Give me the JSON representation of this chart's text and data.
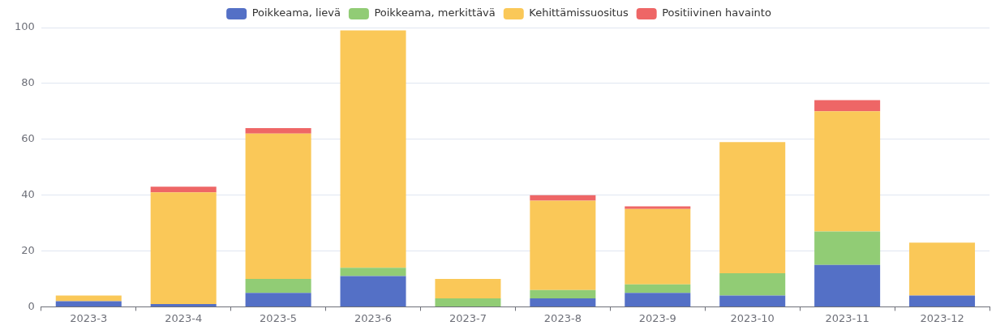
{
  "chart_data": {
    "type": "bar",
    "stacked": true,
    "categories": [
      "2023-3",
      "2023-4",
      "2023-5",
      "2023-6",
      "2023-7",
      "2023-8",
      "2023-9",
      "2023-10",
      "2023-11",
      "2023-12"
    ],
    "series": [
      {
        "name": "Poikkeama, lievä",
        "color": "#5470c6",
        "values": [
          2,
          1,
          5,
          11,
          0,
          3,
          5,
          4,
          15,
          4
        ]
      },
      {
        "name": "Poikkeama, merkittävä",
        "color": "#91cc75",
        "values": [
          0,
          0,
          5,
          3,
          3,
          3,
          3,
          8,
          12,
          0
        ]
      },
      {
        "name": "Kehittämissuositus",
        "color": "#fac858",
        "values": [
          2,
          40,
          52,
          85,
          7,
          32,
          27,
          47,
          43,
          19
        ]
      },
      {
        "name": "Positiivinen havainto",
        "color": "#ee6666",
        "values": [
          0,
          2,
          2,
          0,
          0,
          2,
          1,
          0,
          4,
          0
        ]
      }
    ],
    "ylim": [
      0,
      100
    ],
    "yticks": [
      0,
      20,
      40,
      60,
      80,
      100
    ],
    "grid": "y",
    "legend": "top"
  }
}
